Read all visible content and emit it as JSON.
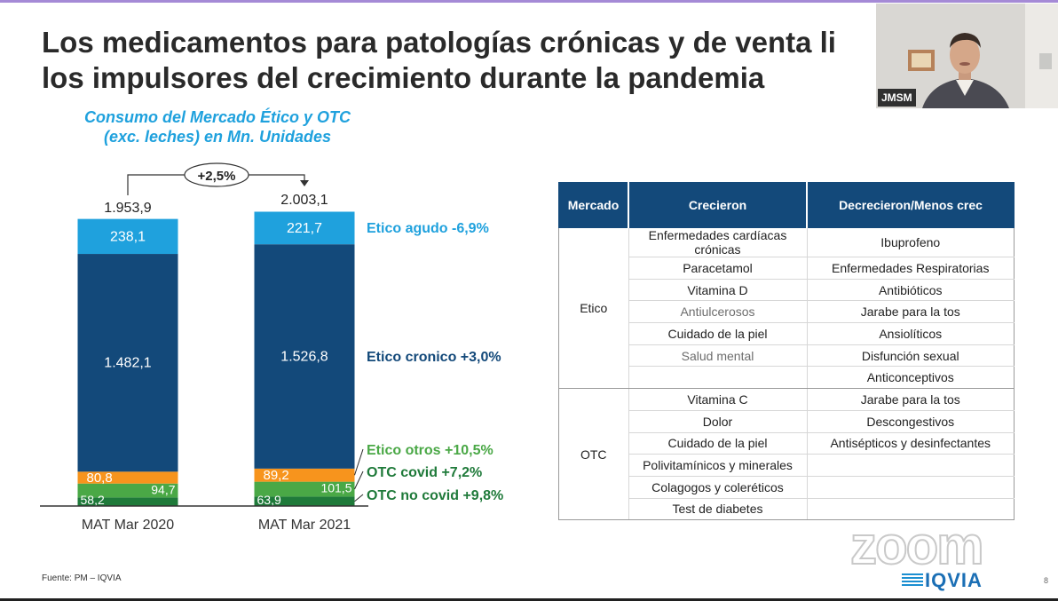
{
  "slide": {
    "title_line1": "Los medicamentos para patologías crónicas y de venta li",
    "title_line2": "los impulsores del crecimiento durante la pandemia",
    "source": "Fuente: PM – IQVIA",
    "page_number": "8",
    "logo_text": "IQVIA",
    "watermark": "zoom"
  },
  "webcam": {
    "name": "JMSM"
  },
  "colors": {
    "agudo": "#1fa1dd",
    "cronico": "#13497a",
    "otros": "#f7941d",
    "otc_covid": "#4aa846",
    "otc_no_covid": "#1f7a3a",
    "table_header": "#13497a"
  },
  "chart_data": {
    "type": "bar",
    "stacked": true,
    "title_line1": "Consumo del Mercado Ético y OTC",
    "title_line2": "(exc. leches) en Mn. Unidades",
    "categories": [
      "MAT Mar 2020",
      "MAT Mar 2021"
    ],
    "totals": [
      "1.953,9",
      "2.003,1"
    ],
    "growth_label": "+2,5%",
    "series": [
      {
        "key": "otc_no_covid",
        "values": [
          58.2,
          63.9
        ],
        "labels": [
          "58,2",
          "63,9"
        ],
        "legend": "OTC no covid +9,8%"
      },
      {
        "key": "otc_covid",
        "values": [
          94.7,
          101.5
        ],
        "labels": [
          "94,7",
          "101,5"
        ],
        "legend": "OTC covid +7,2%"
      },
      {
        "key": "otros",
        "values": [
          80.8,
          89.2
        ],
        "labels": [
          "80,8",
          "89,2"
        ],
        "legend": "Etico otros +10,5%"
      },
      {
        "key": "cronico",
        "values": [
          1482.1,
          1526.8
        ],
        "labels": [
          "1.482,1",
          "1.526,8"
        ],
        "legend": "Etico cronico +3,0%"
      },
      {
        "key": "agudo",
        "values": [
          238.1,
          221.7
        ],
        "labels": [
          "238,1",
          "221,7"
        ],
        "legend": "Etico agudo -6,9%"
      }
    ]
  },
  "table": {
    "headers": [
      "Mercado",
      "Crecieron",
      "Decrecieron/Menos crec"
    ],
    "groups": [
      {
        "name": "Etico",
        "rows": [
          [
            "Enfermedades cardíacas crónicas",
            "Ibuprofeno"
          ],
          [
            "Paracetamol",
            "Enfermedades Respiratorias"
          ],
          [
            "Vitamina D",
            "Antibióticos"
          ],
          [
            "Antiulcerosos",
            "Jarabe para la tos"
          ],
          [
            "Cuidado de la piel",
            "Ansiolíticos"
          ],
          [
            "Salud mental",
            "Disfunción sexual"
          ],
          [
            "",
            "Anticonceptivos"
          ]
        ]
      },
      {
        "name": "OTC",
        "rows": [
          [
            "Vitamina C",
            "Jarabe para la tos"
          ],
          [
            "Dolor",
            "Descongestivos"
          ],
          [
            "Cuidado de la piel",
            "Antisépticos y desinfectantes"
          ],
          [
            "Polivitamínicos y minerales",
            ""
          ],
          [
            "Colagogos y coleréticos",
            ""
          ],
          [
            "Test de diabetes",
            ""
          ]
        ]
      }
    ]
  }
}
